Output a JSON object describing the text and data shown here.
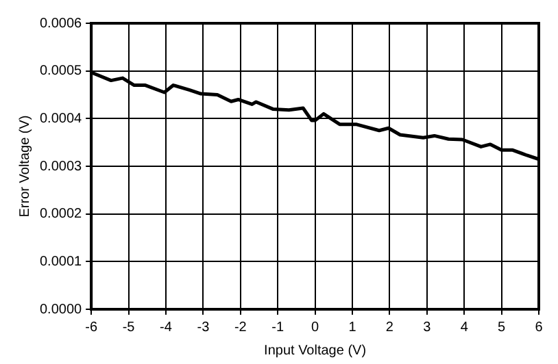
{
  "chart_data": {
    "type": "line",
    "xlabel": "Input Voltage (V)",
    "ylabel": "Error Voltage (V)",
    "x": [
      -5.97,
      -5.47,
      -5.16,
      -4.85,
      -4.55,
      -4.04,
      -3.8,
      -3.36,
      -3.06,
      -2.62,
      -2.25,
      -2.06,
      -1.69,
      -1.58,
      -1.13,
      -0.7,
      -0.32,
      -0.09,
      0.0,
      0.23,
      0.66,
      1.1,
      1.72,
      1.97,
      2.28,
      2.9,
      3.2,
      3.58,
      3.95,
      4.45,
      4.7,
      5.0,
      5.3,
      5.68,
      5.99
    ],
    "series": [
      {
        "color": "#000000",
        "values": [
          0.000496,
          0.00048,
          0.000485,
          0.00047,
          0.00047,
          0.000455,
          0.00047,
          0.00046,
          0.000452,
          0.00045,
          0.000436,
          0.00044,
          0.00043,
          0.000435,
          0.00042,
          0.000418,
          0.000422,
          0.000396,
          0.000396,
          0.00041,
          0.000388,
          0.000388,
          0.000375,
          0.00038,
          0.000366,
          0.00036,
          0.000364,
          0.000357,
          0.000356,
          0.000341,
          0.000346,
          0.000334,
          0.000334,
          0.000323,
          0.000315
        ]
      }
    ],
    "xlim": [
      -6,
      6
    ],
    "xticks": [
      -6,
      -5,
      -4,
      -3,
      -2,
      -1,
      0,
      1,
      2,
      3,
      4,
      5,
      6
    ],
    "ylim": [
      0,
      0.0006
    ],
    "yticks": [
      {
        "value": 0,
        "label": "0.0000"
      },
      {
        "value": 0.0001,
        "label": "0.0001"
      },
      {
        "value": 0.0002,
        "label": "0.0002"
      },
      {
        "value": 0.0003,
        "label": "0.0003"
      },
      {
        "value": 0.0004,
        "label": "0.0004"
      },
      {
        "value": 0.0005,
        "label": "0.0005"
      },
      {
        "value": 0.0006,
        "label": "0.0006"
      }
    ],
    "grid": true,
    "legend": false,
    "marker": "none",
    "line_style": "solid"
  }
}
